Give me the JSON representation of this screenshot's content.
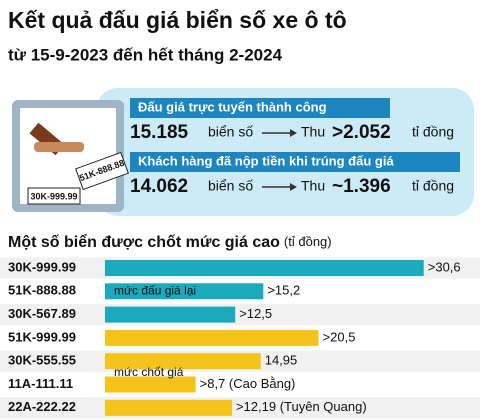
{
  "header": {
    "title": "Kết quả đấu giá biển số xe ô tô",
    "subtitle": "từ 15-9-2023 đến hết tháng 2-2024"
  },
  "illustration": {
    "plates": [
      "30K-999.99",
      "51K-888.88"
    ]
  },
  "summary": [
    {
      "label": "Đấu giá trực tuyến thành công",
      "count": "15.185",
      "count_unit": "biển số",
      "verb": "Thu",
      "amount": ">2.052",
      "amount_unit": "tỉ đồng"
    },
    {
      "label": "Khách hàng đã nộp tiền khi trúng đấu giá",
      "count": "14.062",
      "count_unit": "biển số",
      "verb": "Thu",
      "amount": "~1.396",
      "amount_unit": "tỉ đồng"
    }
  ],
  "chart_data": {
    "type": "hbar",
    "title": "Một số biển được chốt mức giá cao",
    "unit": "(tỉ đồng)",
    "categories": [
      "30K-999.99",
      "51K-888.88",
      "30K-567.89",
      "51K-999.99",
      "30K-555.55",
      "11A-111.11",
      "22A-222.22"
    ],
    "xlim": [
      0,
      36
    ],
    "series": [
      {
        "name": "mức đấu giá lại",
        "color": "#1aa9bd",
        "values": [
          30.6,
          15.2,
          12.5,
          null,
          null,
          null,
          null
        ],
        "value_labels": [
          ">30,6",
          ">15,2",
          ">12,5",
          null,
          null,
          null,
          null
        ]
      },
      {
        "name": "mức chốt giá",
        "color": "#f6c21c",
        "values": [
          null,
          null,
          null,
          20.5,
          14.95,
          8.7,
          12.19
        ],
        "value_labels": [
          null,
          null,
          null,
          ">20,5",
          "14,95",
          ">8,7 (Cao Bằng)",
          ">12,19 (Tuyên Quang)"
        ]
      }
    ]
  }
}
